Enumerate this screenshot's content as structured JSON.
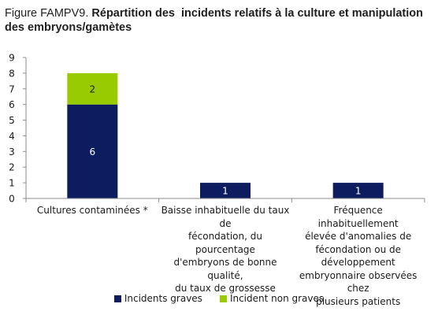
{
  "title": {
    "prefix": "Figure FAMPV9.",
    "main": " Répartition des  incidents relatifs à la culture et manipulation des embryons/gamètes"
  },
  "colors": {
    "graves": "#0d1c5e",
    "non_graves": "#99cc00",
    "axis": "#8c8c8c",
    "label_on_dark": "#ffffff",
    "label_on_light": "#1a1a1a"
  },
  "chart_data": {
    "type": "bar",
    "stacked": true,
    "categories": [
      "Cultures contaminées *",
      "Baisse inhabituelle du taux de fécondation, du pourcentage d'embryons de bonne qualité, du taux de grossesse",
      "Fréquence inhabituellement élevée d'anomalies de fécondation ou de développement embryonnaire observées chez plusieurs patients"
    ],
    "category_lines": [
      [
        "Cultures contaminées *"
      ],
      [
        "Baisse inhabituelle du taux de",
        "fécondation, du pourcentage",
        "d'embryons de bonne qualité,",
        "du taux de grossesse"
      ],
      [
        "Fréquence inhabituellement",
        "élevée d'anomalies de",
        "fécondation ou de",
        "développement",
        "embryonnaire observées chez",
        "plusieurs patients"
      ]
    ],
    "series": [
      {
        "name": "Incidents graves",
        "values": [
          6,
          1,
          1
        ]
      },
      {
        "name": "Incident non graves",
        "values": [
          2,
          0,
          0
        ]
      }
    ],
    "ylim": [
      0,
      9
    ],
    "yticks": [
      "0",
      "1",
      "2",
      "3",
      "4",
      "5",
      "6",
      "7",
      "8",
      "9"
    ],
    "grid": false,
    "legend_position": "bottom"
  }
}
